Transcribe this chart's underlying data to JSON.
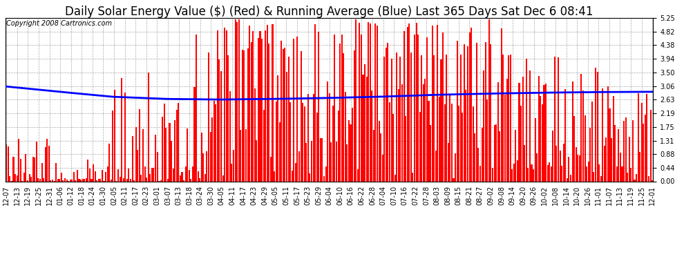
{
  "title": "Daily Solar Energy Value ($) (Red) & Running Average (Blue) Last 365 Days Sat Dec 6 08:41",
  "copyright_text": "Copyright 2008 Cartronics.com",
  "bar_color": "#ff0000",
  "line_color": "#0000ff",
  "background_color": "#ffffff",
  "grid_color": "#aaaaaa",
  "yticks": [
    0.0,
    0.44,
    0.88,
    1.31,
    1.75,
    2.19,
    2.63,
    3.06,
    3.5,
    3.94,
    4.38,
    4.82,
    5.25
  ],
  "ylim": [
    0,
    5.25
  ],
  "xtick_labels": [
    "12-07",
    "12-13",
    "12-19",
    "12-25",
    "12-31",
    "01-06",
    "01-12",
    "01-18",
    "01-24",
    "01-30",
    "02-05",
    "02-11",
    "02-17",
    "02-23",
    "03-01",
    "03-07",
    "03-13",
    "03-18",
    "03-24",
    "03-30",
    "04-05",
    "04-11",
    "04-17",
    "04-23",
    "04-29",
    "05-05",
    "05-11",
    "05-17",
    "05-23",
    "05-29",
    "06-04",
    "06-10",
    "06-16",
    "06-22",
    "06-28",
    "07-04",
    "07-10",
    "07-16",
    "07-22",
    "07-28",
    "08-03",
    "08-09",
    "08-15",
    "08-21",
    "08-27",
    "09-02",
    "09-08",
    "09-14",
    "09-20",
    "09-26",
    "10-02",
    "10-08",
    "10-14",
    "10-20",
    "10-26",
    "11-01",
    "11-07",
    "11-13",
    "11-19",
    "11-25",
    "12-01"
  ],
  "title_fontsize": 12,
  "copyright_fontsize": 7,
  "tick_fontsize": 7,
  "n_bars": 365,
  "avg_line_points": [
    [
      0,
      3.05
    ],
    [
      30,
      2.88
    ],
    [
      60,
      2.72
    ],
    [
      90,
      2.65
    ],
    [
      120,
      2.63
    ],
    [
      150,
      2.65
    ],
    [
      180,
      2.68
    ],
    [
      210,
      2.72
    ],
    [
      240,
      2.78
    ],
    [
      270,
      2.82
    ],
    [
      300,
      2.85
    ],
    [
      330,
      2.87
    ],
    [
      364,
      2.88
    ]
  ]
}
